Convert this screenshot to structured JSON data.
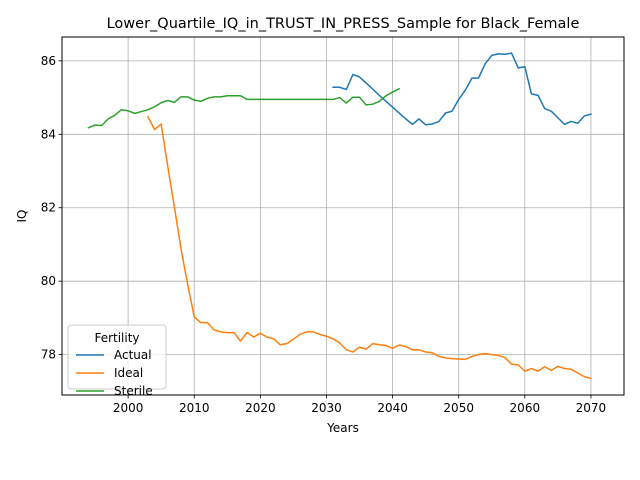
{
  "chart_data": {
    "type": "line",
    "title": "Lower_Quartile_IQ_in_TRUST_IN_PRESS_Sample for Black_Female",
    "xlabel": "Years",
    "ylabel": "IQ",
    "xlim": [
      1990,
      2075
    ],
    "ylim": [
      76.9,
      86.65
    ],
    "x_ticks": [
      2000,
      2010,
      2020,
      2030,
      2040,
      2050,
      2060,
      2070
    ],
    "y_ticks": [
      78,
      80,
      82,
      84,
      86
    ],
    "grid": true,
    "legend": {
      "title": "Fertility",
      "placement": "lower-left"
    },
    "series": [
      {
        "name": "Actual",
        "color": "#1f77b4",
        "x": [
          2031,
          2032,
          2033,
          2034,
          2035,
          2036,
          2037,
          2038,
          2039,
          2040,
          2041,
          2042,
          2043,
          2044,
          2045,
          2046,
          2047,
          2048,
          2049,
          2050,
          2051,
          2052,
          2053,
          2054,
          2055,
          2056,
          2057,
          2058,
          2059,
          2060,
          2061,
          2062,
          2063,
          2064,
          2065,
          2066,
          2067,
          2068,
          2069,
          2070
        ],
        "values": [
          85.28,
          85.28,
          85.22,
          85.63,
          85.56,
          85.4,
          85.23,
          85.06,
          84.9,
          84.74,
          84.58,
          84.42,
          84.27,
          84.42,
          84.26,
          84.28,
          84.35,
          84.58,
          84.63,
          84.95,
          85.2,
          85.53,
          85.53,
          85.92,
          86.15,
          86.19,
          86.18,
          86.21,
          85.81,
          85.84,
          85.1,
          85.06,
          84.7,
          84.63,
          84.45,
          84.27,
          84.35,
          84.3,
          84.5,
          84.55
        ]
      },
      {
        "name": "Ideal",
        "color": "#ff7f0e",
        "x": [
          2003,
          2004,
          2005,
          2006,
          2007,
          2008,
          2009,
          2010,
          2011,
          2012,
          2013,
          2014,
          2015,
          2016,
          2017,
          2018,
          2019,
          2020,
          2021,
          2022,
          2023,
          2024,
          2025,
          2026,
          2027,
          2028,
          2029,
          2030,
          2031,
          2032,
          2033,
          2034,
          2035,
          2036,
          2037,
          2038,
          2039,
          2040,
          2041,
          2042,
          2043,
          2044,
          2045,
          2046,
          2047,
          2048,
          2049,
          2050,
          2051,
          2052,
          2053,
          2054,
          2055,
          2056,
          2057,
          2058,
          2059,
          2060,
          2061,
          2062,
          2063,
          2064,
          2065,
          2066,
          2067,
          2068,
          2069,
          2070
        ],
        "values": [
          84.48,
          84.13,
          84.28,
          83.12,
          82.02,
          80.88,
          79.92,
          79.03,
          78.87,
          78.87,
          78.67,
          78.62,
          78.6,
          78.6,
          78.37,
          78.6,
          78.48,
          78.58,
          78.48,
          78.43,
          78.27,
          78.3,
          78.42,
          78.55,
          78.62,
          78.62,
          78.55,
          78.5,
          78.43,
          78.32,
          78.13,
          78.07,
          78.2,
          78.15,
          78.3,
          78.27,
          78.25,
          78.17,
          78.26,
          78.22,
          78.13,
          78.13,
          78.07,
          78.05,
          77.95,
          77.91,
          77.89,
          77.88,
          77.87,
          77.95,
          78.0,
          78.03,
          78.0,
          77.98,
          77.92,
          77.74,
          77.72,
          77.55,
          77.62,
          77.55,
          77.67,
          77.57,
          77.68,
          77.62,
          77.6,
          77.5,
          77.4,
          77.35
        ]
      },
      {
        "name": "Sterile",
        "color": "#2ca02c",
        "x": [
          1994,
          1995,
          1996,
          1997,
          1998,
          1999,
          2000,
          2001,
          2002,
          2003,
          2004,
          2005,
          2006,
          2007,
          2008,
          2009,
          2010,
          2011,
          2012,
          2013,
          2014,
          2015,
          2016,
          2017,
          2018,
          2019,
          2020,
          2021,
          2022,
          2023,
          2024,
          2025,
          2026,
          2027,
          2028,
          2029,
          2030,
          2031,
          2032,
          2033,
          2034,
          2035,
          2036,
          2037,
          2038,
          2039,
          2040,
          2041
        ],
        "values": [
          84.18,
          84.25,
          84.24,
          84.42,
          84.52,
          84.67,
          84.64,
          84.57,
          84.62,
          84.67,
          84.75,
          84.86,
          84.92,
          84.87,
          85.02,
          85.02,
          84.93,
          84.9,
          84.98,
          85.02,
          85.02,
          85.05,
          85.05,
          85.05,
          84.95,
          84.95,
          84.95,
          84.95,
          84.95,
          84.95,
          84.95,
          84.95,
          84.95,
          84.95,
          84.95,
          84.95,
          84.95,
          84.95,
          85.0,
          84.85,
          85.01,
          85.01,
          84.8,
          84.82,
          84.9,
          85.05,
          85.15,
          85.24
        ]
      }
    ]
  }
}
